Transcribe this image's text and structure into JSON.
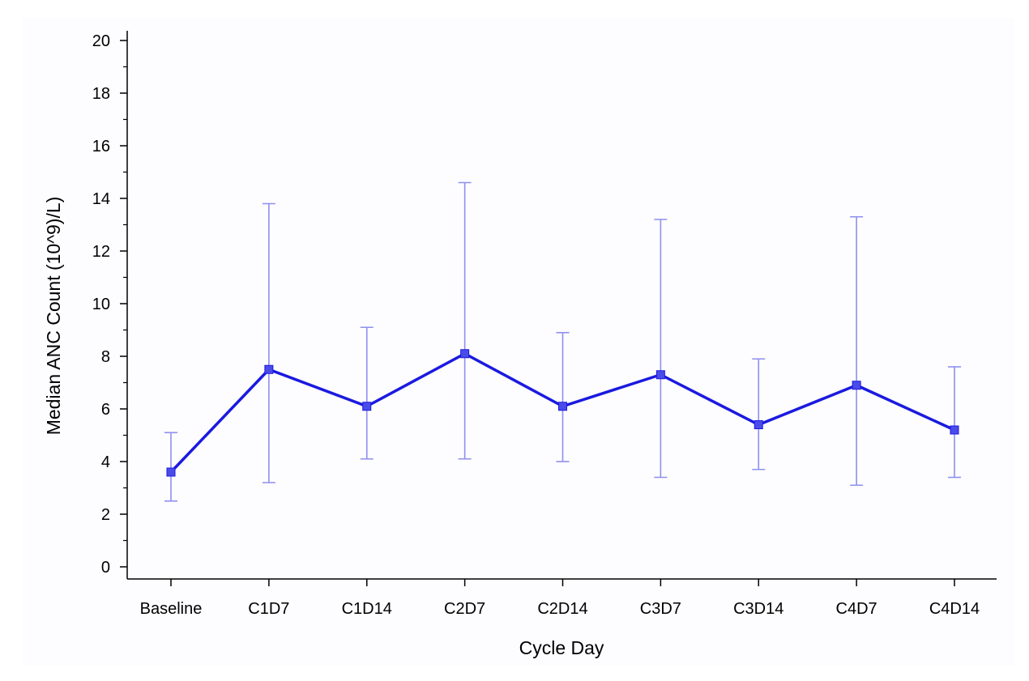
{
  "chart_data": {
    "type": "line",
    "title": "",
    "xlabel": "Cycle Day",
    "ylabel": "Median ANC Count  (10^9)/L)",
    "categories": [
      "Baseline",
      "C1D7",
      "C1D14",
      "C2D7",
      "C2D14",
      "C3D7",
      "C3D14",
      "C4D7",
      "C4D14"
    ],
    "ylim": [
      0,
      20
    ],
    "yticks": [
      0,
      2,
      4,
      6,
      8,
      10,
      12,
      14,
      16,
      18,
      20
    ],
    "grid": false,
    "legend": "none",
    "series": [
      {
        "values": [
          3.6,
          7.5,
          6.1,
          8.1,
          6.1,
          7.3,
          5.4,
          6.9,
          5.2
        ],
        "error_low": [
          2.5,
          3.2,
          4.1,
          4.1,
          4.0,
          3.4,
          3.7,
          3.1,
          3.4
        ],
        "error_high": [
          5.1,
          13.8,
          9.1,
          14.6,
          8.9,
          13.2,
          7.9,
          13.3,
          7.6
        ],
        "color": "#1a1ae0",
        "errorbar_color": "#8f8ff0"
      }
    ]
  }
}
